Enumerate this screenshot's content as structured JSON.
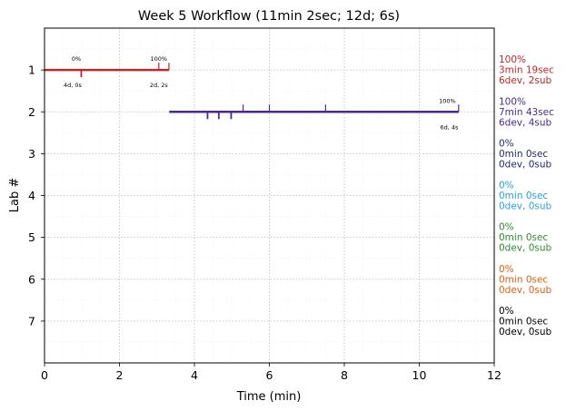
{
  "chart_data": {
    "type": "timeline",
    "title": "Week 5 Workflow (11min 2sec; 12d; 6s)",
    "xlabel": "Time (min)",
    "ylabel": "Lab #",
    "xlim": [
      0,
      12
    ],
    "ylim": [
      8,
      0
    ],
    "x_ticks": [
      0,
      2,
      4,
      6,
      8,
      10,
      12
    ],
    "y_ticks": [
      1,
      2,
      3,
      4,
      5,
      6,
      7
    ],
    "grid": true,
    "labs": [
      {
        "lab": 1,
        "color": "#c0272d",
        "start": 0,
        "end": 3.32,
        "upper_ticks": [
          3.05,
          3.32
        ],
        "lower_ticks": [
          0.98
        ],
        "annotations": [
          {
            "x": 0.85,
            "pos": "above",
            "text": "0%"
          },
          {
            "x": 0.75,
            "pos": "below",
            "text": "4d, 0s"
          },
          {
            "x": 3.05,
            "pos": "above",
            "text": "100%"
          },
          {
            "x": 3.05,
            "pos": "below",
            "text": "2d, 2s"
          }
        ],
        "summary": [
          "100%",
          "3min 19sec",
          "6dev, 2sub"
        ]
      },
      {
        "lab": 2,
        "color": "#4b2a8c",
        "start": 3.33,
        "end": 11.05,
        "upper_ticks": [
          5.3,
          6.0,
          7.5,
          11.05
        ],
        "lower_ticks": [
          4.35,
          4.65,
          4.98
        ],
        "annotations": [
          {
            "x": 10.75,
            "pos": "above",
            "text": "100%"
          },
          {
            "x": 10.8,
            "pos": "below",
            "text": "6d, 4s"
          }
        ],
        "summary": [
          "100%",
          "7min 43sec",
          "6dev, 4sub"
        ]
      },
      {
        "lab": 3,
        "color": "#1f2a6b",
        "summary": [
          "0%",
          "0min 0sec",
          "0dev, 0sub"
        ]
      },
      {
        "lab": 4,
        "color": "#2aa0dc",
        "summary": [
          "0%",
          "0min 0sec",
          "0dev, 0sub"
        ]
      },
      {
        "lab": 5,
        "color": "#2e8b2e",
        "summary": [
          "0%",
          "0min 0sec",
          "0dev, 0sub"
        ]
      },
      {
        "lab": 6,
        "color": "#e06010",
        "summary": [
          "0%",
          "0min 0sec",
          "0dev, 0sub"
        ]
      },
      {
        "lab": 7,
        "color": "#000000",
        "summary": [
          "0%",
          "0min 0sec",
          "0dev, 0sub"
        ]
      }
    ]
  }
}
